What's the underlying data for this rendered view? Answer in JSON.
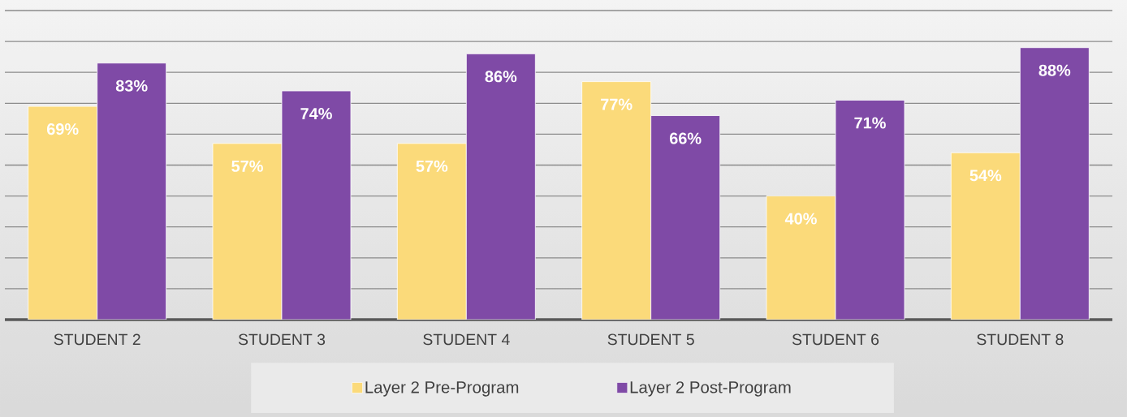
{
  "chart_data": {
    "type": "bar",
    "categories": [
      "STUDENT 2",
      "STUDENT 3",
      "STUDENT 4",
      "STUDENT 5",
      "STUDENT 6",
      "STUDENT 8"
    ],
    "series": [
      {
        "name": "Layer 2 Pre-Program",
        "color": "#fbda7a",
        "values": [
          69,
          57,
          57,
          77,
          40,
          54
        ],
        "value_labels": [
          "69%",
          "57%",
          "57%",
          "77%",
          "40%",
          "54%"
        ]
      },
      {
        "name": "Layer 2 Post-Program",
        "color": "#7f4aa6",
        "values": [
          83,
          74,
          86,
          66,
          71,
          88
        ],
        "value_labels": [
          "83%",
          "74%",
          "86%",
          "66%",
          "71%",
          "88%"
        ]
      }
    ],
    "ylim": [
      0,
      100
    ],
    "yticks": [
      {
        "value": 0,
        "label": null
      },
      {
        "value": 10,
        "label": null
      },
      {
        "value": 20,
        "label": null
      },
      {
        "value": 30,
        "label": null
      },
      {
        "value": 40,
        "label": null
      },
      {
        "value": 50,
        "label": null
      },
      {
        "value": 60,
        "label": null
      },
      {
        "value": 70,
        "label": null
      },
      {
        "value": 80,
        "label": null
      },
      {
        "value": 90,
        "label": null
      },
      {
        "value": 100,
        "label": null
      }
    ],
    "grid": "y",
    "legend": "bottom",
    "tick_labels": "x"
  }
}
